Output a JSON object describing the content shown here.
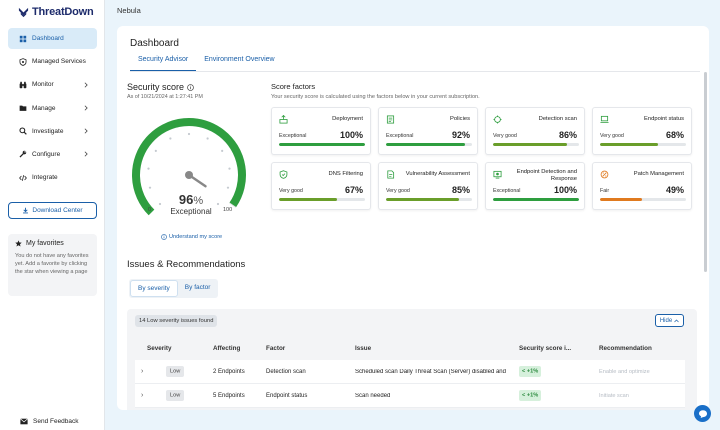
{
  "app": {
    "brand": "ThreatDown",
    "top_title": "Nebula"
  },
  "sidebar": {
    "items": [
      {
        "label": "Dashboard",
        "icon": "home-icon",
        "active": true,
        "chevron": false
      },
      {
        "label": "Managed Services",
        "icon": "shield-icon",
        "active": false,
        "chevron": false
      },
      {
        "label": "Monitor",
        "icon": "binoculars-icon",
        "active": false,
        "chevron": true
      },
      {
        "label": "Manage",
        "icon": "folder-icon",
        "active": false,
        "chevron": true
      },
      {
        "label": "Investigate",
        "icon": "search-icon",
        "active": false,
        "chevron": true
      },
      {
        "label": "Configure",
        "icon": "wrench-icon",
        "active": false,
        "chevron": true
      },
      {
        "label": "Integrate",
        "icon": "code-icon",
        "active": false,
        "chevron": false
      }
    ],
    "download_label": "Download Center",
    "favorites_title": "My favorites",
    "favorites_text": "You do not have any favorites yet. Add a favorite by clicking the star when viewing a page",
    "feedback_label": "Send Feedback"
  },
  "page": {
    "title": "Dashboard",
    "tabs": [
      {
        "label": "Security Advisor",
        "active": true
      },
      {
        "label": "Environment Overview",
        "active": false
      }
    ]
  },
  "security_score": {
    "title": "Security score",
    "date": "As of 10/21/2024 at 1:27:41 PM",
    "value": "96",
    "unit": "%",
    "status": "Exceptional",
    "min": "0",
    "max": "100",
    "understand_link": "Understand my score",
    "accent": "#2e9e3f"
  },
  "score_factors": {
    "title": "Score factors",
    "subtitle": "Your security score is calculated using the factors below in your current subscription.",
    "cards": [
      {
        "name": "Deployment",
        "rating": "Exceptional",
        "pct": "100%",
        "fraction": 1.0,
        "color": "#2e9e3f",
        "icon": "deployment-icon"
      },
      {
        "name": "Policies",
        "rating": "Exceptional",
        "pct": "92%",
        "fraction": 0.92,
        "color": "#2e9e3f",
        "icon": "policies-icon"
      },
      {
        "name": "Detection scan",
        "rating": "Very good",
        "pct": "86%",
        "fraction": 0.86,
        "color": "#6a9e2a",
        "icon": "detection-scan-icon"
      },
      {
        "name": "Endpoint status",
        "rating": "Very good",
        "pct": "68%",
        "fraction": 0.68,
        "color": "#6a9e2a",
        "icon": "endpoint-status-icon"
      },
      {
        "name": "DNS Filtering",
        "rating": "Very good",
        "pct": "67%",
        "fraction": 0.67,
        "color": "#6a9e2a",
        "icon": "dns-filtering-icon"
      },
      {
        "name": "Vulnerability Assessment",
        "rating": "Very good",
        "pct": "85%",
        "fraction": 0.85,
        "color": "#6a9e2a",
        "icon": "vulnerability-icon"
      },
      {
        "name": "Endpoint Detection and Response",
        "rating": "Exceptional",
        "pct": "100%",
        "fraction": 1.0,
        "color": "#2e9e3f",
        "icon": "edr-icon"
      },
      {
        "name": "Patch Management",
        "rating": "Fair",
        "pct": "49%",
        "fraction": 0.49,
        "color": "#e07a1f",
        "icon": "patch-management-icon"
      }
    ]
  },
  "issues": {
    "title": "Issues & Recommendations",
    "segments": [
      {
        "label": "By severity",
        "active": true
      },
      {
        "label": "By factor",
        "active": false
      }
    ],
    "badge": "14 Low severity issues found",
    "hide_label": "Hide",
    "columns": [
      "Severity",
      "Affecting",
      "Factor",
      "Issue",
      "Security score i...",
      "Recommendation"
    ],
    "rows": [
      {
        "severity": "Low",
        "affecting": "2 Endpoints",
        "factor": "Detection scan",
        "issue": "Scheduled scan Daily Threat Scan (Server) disabled and",
        "delta": "< +1%",
        "recommendation": "Enable and optimize"
      },
      {
        "severity": "Low",
        "affecting": "5 Endpoints",
        "factor": "Endpoint status",
        "issue": "Scan needed",
        "delta": "< +1%",
        "recommendation": "Initiate scan"
      }
    ]
  }
}
